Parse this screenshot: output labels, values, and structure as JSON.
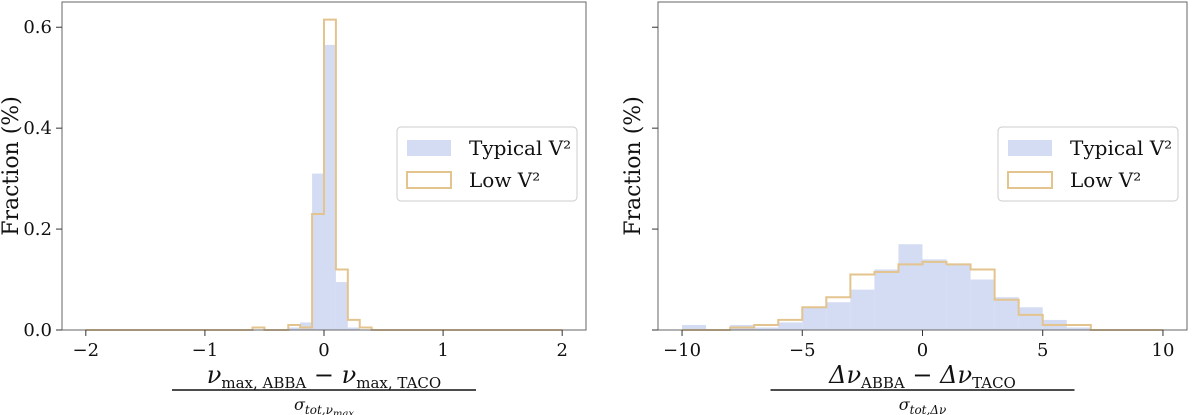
{
  "colors": {
    "typical_fill": "#d4dcf3",
    "low_edge": "#e3c48e",
    "axis": "#666666",
    "legend_border": "#cccccc"
  },
  "chart_data": [
    {
      "type": "histogram",
      "ylabel": "Fraction (%)",
      "xlabel": {
        "numerator": "ν_max, ABBA − ν_max, TACO",
        "denominator": "σ_tot,ν_max",
        "num_parts": {
          "sym": "ν",
          "sub1": "max, ABBA",
          "minus": " − ",
          "sym2": "ν",
          "sub2": "max, TACO"
        },
        "den_parts": {
          "sym": "σ",
          "sub": "tot,ν",
          "subsub": "max"
        }
      },
      "xlim": [
        -2.2,
        2.2
      ],
      "ylim": [
        0,
        0.65
      ],
      "xticks": [
        -2,
        -1,
        0,
        1,
        2
      ],
      "yticks": [
        0.0,
        0.2,
        0.4,
        0.6
      ],
      "ytick_labels": [
        "0.0",
        "0.2",
        "0.4",
        "0.6"
      ],
      "bin_edges": [
        -2.0,
        -1.9,
        -1.8,
        -1.7,
        -1.6,
        -1.5,
        -1.4,
        -1.3,
        -1.2,
        -1.1,
        -1.0,
        -0.9,
        -0.8,
        -0.7,
        -0.6,
        -0.5,
        -0.4,
        -0.3,
        -0.2,
        -0.1,
        0.0,
        0.1,
        0.2,
        0.3,
        0.4,
        0.5,
        0.6,
        0.7,
        0.8,
        0.9,
        1.0,
        1.1,
        1.2,
        1.3,
        1.4,
        1.5,
        1.6,
        1.7,
        1.8,
        1.9,
        2.0
      ],
      "legend": {
        "placement": "center-right",
        "entries": [
          "Typical V²",
          "Low V²"
        ]
      },
      "series": [
        {
          "name": "Typical V²",
          "style": "filled",
          "values": [
            0,
            0,
            0,
            0,
            0,
            0,
            0,
            0,
            0,
            0,
            0,
            0,
            0,
            0,
            0,
            0,
            0,
            0.005,
            0.015,
            0.31,
            0.565,
            0.095,
            0.005,
            0,
            0,
            0,
            0,
            0,
            0,
            0,
            0,
            0,
            0,
            0,
            0,
            0,
            0,
            0,
            0,
            0
          ]
        },
        {
          "name": "Low V²",
          "style": "step",
          "values": [
            0,
            0,
            0,
            0,
            0,
            0,
            0,
            0,
            0,
            0,
            0,
            0,
            0,
            0,
            0.005,
            0,
            0,
            0.01,
            0.005,
            0.23,
            0.615,
            0.12,
            0.02,
            0.005,
            0,
            0,
            0,
            0,
            0,
            0,
            0,
            0,
            0,
            0,
            0,
            0,
            0,
            0,
            0,
            0
          ]
        }
      ]
    },
    {
      "type": "histogram",
      "ylabel": "Fraction (%)",
      "xlabel": {
        "numerator": "Δν_ABBA − Δν_TACO",
        "denominator": "σ_tot,Δν",
        "num_parts": {
          "sym": "Δν",
          "sub1": "ABBA",
          "minus": " − ",
          "sym2": "Δν",
          "sub2": "TACO"
        },
        "den_parts": {
          "sym": "σ",
          "sub": "tot,Δν",
          "subsub": ""
        }
      },
      "xlim": [
        -11,
        11
      ],
      "ylim": [
        0,
        0.65
      ],
      "xticks": [
        -10,
        -5,
        0,
        5,
        10
      ],
      "yticks": [
        0.0,
        0.2,
        0.4,
        0.6
      ],
      "ytick_labels": [
        "",
        "",
        "",
        ""
      ],
      "bin_edges": [
        -10,
        -9,
        -8,
        -7,
        -6,
        -5,
        -4,
        -3,
        -2,
        -1,
        0,
        1,
        2,
        3,
        4,
        5,
        6,
        7,
        8,
        9,
        10
      ],
      "legend": {
        "placement": "center-right",
        "entries": [
          "Typical V²",
          "Low V²"
        ]
      },
      "series": [
        {
          "name": "Typical V²",
          "style": "filled",
          "values": [
            0.01,
            0,
            0.01,
            0.005,
            0.015,
            0.045,
            0.055,
            0.08,
            0.12,
            0.17,
            0.14,
            0.13,
            0.1,
            0.065,
            0.045,
            0.02,
            0.005,
            0,
            0,
            0
          ]
        },
        {
          "name": "Low V²",
          "style": "step",
          "values": [
            0,
            0,
            0.005,
            0.01,
            0.02,
            0.045,
            0.065,
            0.11,
            0.115,
            0.13,
            0.135,
            0.13,
            0.12,
            0.06,
            0.03,
            0.01,
            0.01,
            0,
            0,
            0
          ]
        }
      ]
    }
  ]
}
